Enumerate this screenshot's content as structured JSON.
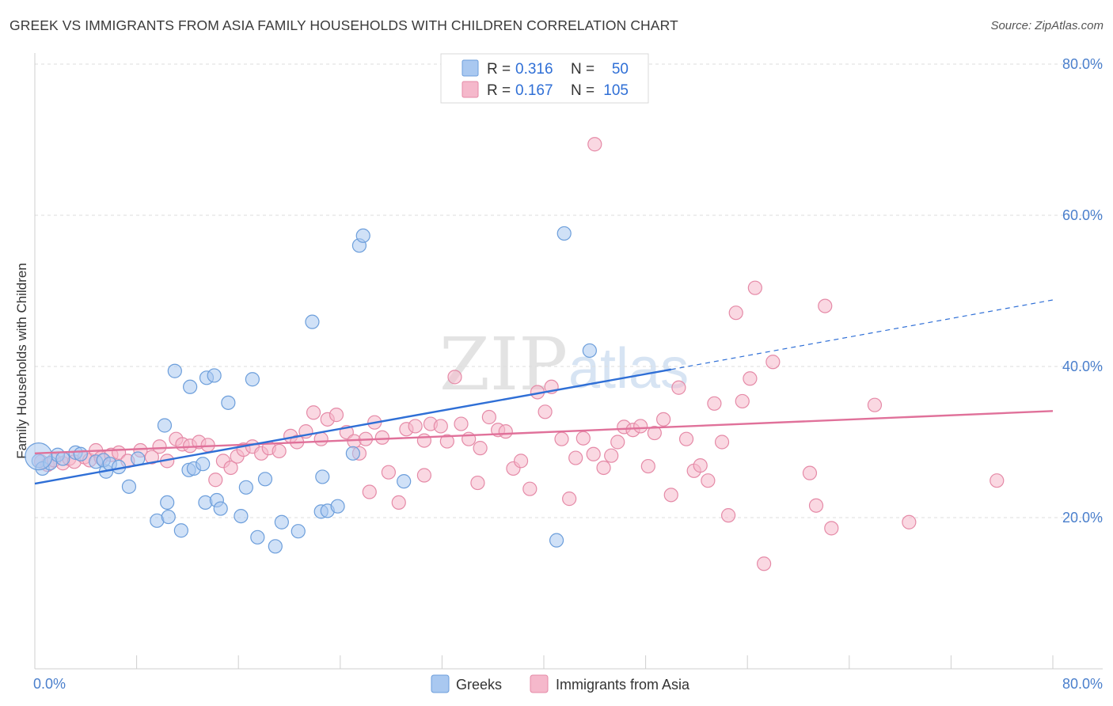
{
  "header": {
    "title": "GREEK VS IMMIGRANTS FROM ASIA FAMILY HOUSEHOLDS WITH CHILDREN CORRELATION CHART",
    "source": "Source: ZipAtlas.com"
  },
  "watermark": {
    "zip": "ZIP",
    "atlas": "atlas"
  },
  "legend_box": {
    "r_label": "R =",
    "n_label": "N =",
    "rows": [
      {
        "r": "0.316",
        "n": "50",
        "color": "#a9c8f0"
      },
      {
        "r": "0.167",
        "n": "105",
        "color": "#f5b8cb"
      }
    ]
  },
  "colors": {
    "greek_fill": "#a9c8f0",
    "greek_stroke": "#6c9edb",
    "greek_line": "#2f6fd6",
    "asia_fill": "#f5b8cb",
    "asia_stroke": "#e58aa7",
    "asia_line": "#e0719a",
    "grid": "#dcdcdc",
    "tick_text": "#4a7fcc"
  },
  "chart_data": {
    "type": "scatter",
    "title": "GREEK VS IMMIGRANTS FROM ASIA FAMILY HOUSEHOLDS WITH CHILDREN CORRELATION CHART",
    "xlabel": "",
    "ylabel": "Family Households with Children",
    "xlim": [
      0,
      80
    ],
    "ylim": [
      0,
      80
    ],
    "x_tick_labels": [
      "0.0%",
      "80.0%"
    ],
    "y_tick_labels": [
      "20.0%",
      "40.0%",
      "60.0%",
      "80.0%"
    ],
    "y_ticks": [
      20,
      40,
      60,
      80
    ],
    "grid": true,
    "legend_position": "top-center",
    "series": [
      {
        "name": "Greeks",
        "r": 0.316,
        "n": 50,
        "trend": {
          "x0": 0,
          "y0": 24.5,
          "x1": 50,
          "y1": 39.6,
          "dash_to_x": 80,
          "dash_to_y": 48.8
        },
        "points": [
          [
            0.3,
            27.5
          ],
          [
            0.6,
            26.5
          ],
          [
            1.2,
            27.2
          ],
          [
            1.8,
            28.3
          ],
          [
            2.2,
            27.8
          ],
          [
            3.2,
            28.6
          ],
          [
            3.6,
            28.4
          ],
          [
            4.8,
            27.4
          ],
          [
            5.6,
            26.1
          ],
          [
            5.4,
            27.6
          ],
          [
            5.9,
            27.1
          ],
          [
            7.4,
            24.1
          ],
          [
            8.1,
            27.8
          ],
          [
            6.6,
            26.7
          ],
          [
            10.2,
            32.2
          ],
          [
            11.0,
            39.4
          ],
          [
            12.2,
            37.3
          ],
          [
            13.5,
            38.5
          ],
          [
            14.1,
            38.8
          ],
          [
            15.2,
            35.2
          ],
          [
            17.1,
            38.3
          ],
          [
            9.6,
            19.6
          ],
          [
            10.4,
            22.0
          ],
          [
            10.5,
            20.1
          ],
          [
            11.5,
            18.3
          ],
          [
            12.1,
            26.3
          ],
          [
            12.5,
            26.5
          ],
          [
            13.2,
            27.1
          ],
          [
            13.4,
            22.0
          ],
          [
            14.3,
            22.3
          ],
          [
            14.6,
            21.2
          ],
          [
            16.2,
            20.2
          ],
          [
            16.6,
            24.0
          ],
          [
            17.5,
            17.4
          ],
          [
            18.1,
            25.1
          ],
          [
            18.9,
            16.2
          ],
          [
            19.4,
            19.4
          ],
          [
            20.7,
            18.2
          ],
          [
            22.5,
            20.8
          ],
          [
            21.8,
            45.9
          ],
          [
            22.6,
            25.4
          ],
          [
            23.0,
            20.9
          ],
          [
            23.8,
            21.5
          ],
          [
            25.0,
            28.5
          ],
          [
            25.5,
            56.0
          ],
          [
            25.8,
            57.3
          ],
          [
            29.0,
            24.8
          ],
          [
            41.6,
            57.6
          ],
          [
            43.6,
            42.1
          ],
          [
            41.0,
            17.0
          ]
        ]
      },
      {
        "name": "Immigrants from Asia",
        "r": 0.167,
        "n": 105,
        "trend": {
          "x0": 0,
          "y0": 28.5,
          "x1": 80,
          "y1": 34.1
        },
        "points": [
          [
            0.5,
            27.4
          ],
          [
            1.0,
            27.0
          ],
          [
            1.5,
            27.6
          ],
          [
            2.2,
            27.2
          ],
          [
            2.7,
            27.8
          ],
          [
            3.1,
            27.4
          ],
          [
            3.9,
            28.0
          ],
          [
            4.3,
            27.6
          ],
          [
            4.8,
            28.9
          ],
          [
            5.2,
            27.9
          ],
          [
            6.0,
            28.3
          ],
          [
            6.6,
            28.6
          ],
          [
            7.3,
            27.5
          ],
          [
            8.3,
            28.9
          ],
          [
            9.2,
            28.0
          ],
          [
            9.8,
            29.4
          ],
          [
            10.4,
            27.5
          ],
          [
            11.1,
            30.4
          ],
          [
            11.6,
            29.7
          ],
          [
            12.2,
            29.5
          ],
          [
            12.9,
            30.0
          ],
          [
            13.6,
            29.6
          ],
          [
            14.2,
            25.0
          ],
          [
            14.8,
            27.5
          ],
          [
            15.4,
            26.6
          ],
          [
            15.9,
            28.1
          ],
          [
            16.4,
            29.0
          ],
          [
            17.1,
            29.4
          ],
          [
            17.8,
            28.5
          ],
          [
            18.4,
            29.2
          ],
          [
            19.2,
            28.8
          ],
          [
            20.1,
            30.8
          ],
          [
            20.6,
            30.0
          ],
          [
            21.3,
            31.4
          ],
          [
            21.9,
            33.9
          ],
          [
            22.5,
            30.4
          ],
          [
            23.0,
            33.0
          ],
          [
            23.7,
            33.6
          ],
          [
            24.5,
            31.3
          ],
          [
            25.1,
            30.1
          ],
          [
            25.5,
            28.5
          ],
          [
            26.0,
            30.4
          ],
          [
            26.7,
            32.6
          ],
          [
            27.3,
            30.6
          ],
          [
            27.8,
            26.0
          ],
          [
            28.6,
            22.0
          ],
          [
            29.2,
            31.7
          ],
          [
            29.9,
            32.1
          ],
          [
            30.6,
            30.2
          ],
          [
            31.1,
            32.4
          ],
          [
            31.9,
            32.1
          ],
          [
            32.4,
            30.1
          ],
          [
            33.0,
            38.6
          ],
          [
            33.5,
            32.4
          ],
          [
            34.1,
            30.4
          ],
          [
            35.0,
            29.2
          ],
          [
            35.7,
            33.3
          ],
          [
            36.4,
            31.6
          ],
          [
            37.0,
            31.4
          ],
          [
            37.6,
            26.5
          ],
          [
            38.2,
            27.5
          ],
          [
            38.9,
            23.8
          ],
          [
            39.5,
            36.6
          ],
          [
            40.1,
            34.0
          ],
          [
            40.6,
            37.3
          ],
          [
            41.4,
            30.4
          ],
          [
            42.0,
            22.5
          ],
          [
            42.5,
            27.9
          ],
          [
            43.1,
            30.5
          ],
          [
            43.9,
            28.4
          ],
          [
            44.7,
            26.6
          ],
          [
            45.3,
            28.2
          ],
          [
            45.8,
            30.0
          ],
          [
            46.3,
            32.0
          ],
          [
            47.0,
            31.6
          ],
          [
            47.6,
            32.1
          ],
          [
            48.2,
            26.8
          ],
          [
            48.7,
            31.2
          ],
          [
            49.4,
            33.0
          ],
          [
            50.0,
            23.0
          ],
          [
            50.6,
            37.2
          ],
          [
            51.2,
            30.4
          ],
          [
            51.8,
            26.2
          ],
          [
            52.3,
            26.9
          ],
          [
            52.9,
            24.9
          ],
          [
            53.4,
            35.1
          ],
          [
            54.0,
            30.0
          ],
          [
            54.5,
            20.3
          ],
          [
            55.1,
            47.1
          ],
          [
            55.6,
            35.4
          ],
          [
            56.2,
            38.4
          ],
          [
            56.6,
            50.4
          ],
          [
            57.3,
            13.9
          ],
          [
            58.0,
            40.6
          ],
          [
            60.9,
            25.9
          ],
          [
            61.4,
            21.6
          ],
          [
            62.1,
            48.0
          ],
          [
            62.6,
            18.6
          ],
          [
            66.0,
            34.9
          ],
          [
            68.7,
            19.4
          ],
          [
            75.6,
            24.9
          ],
          [
            44.0,
            69.4
          ],
          [
            30.6,
            25.6
          ],
          [
            26.3,
            23.4
          ],
          [
            34.8,
            24.6
          ]
        ]
      }
    ]
  },
  "bottom_legend": [
    {
      "label": "Greeks",
      "color": "#a9c8f0"
    },
    {
      "label": "Immigrants from Asia",
      "color": "#f5b8cb"
    }
  ]
}
